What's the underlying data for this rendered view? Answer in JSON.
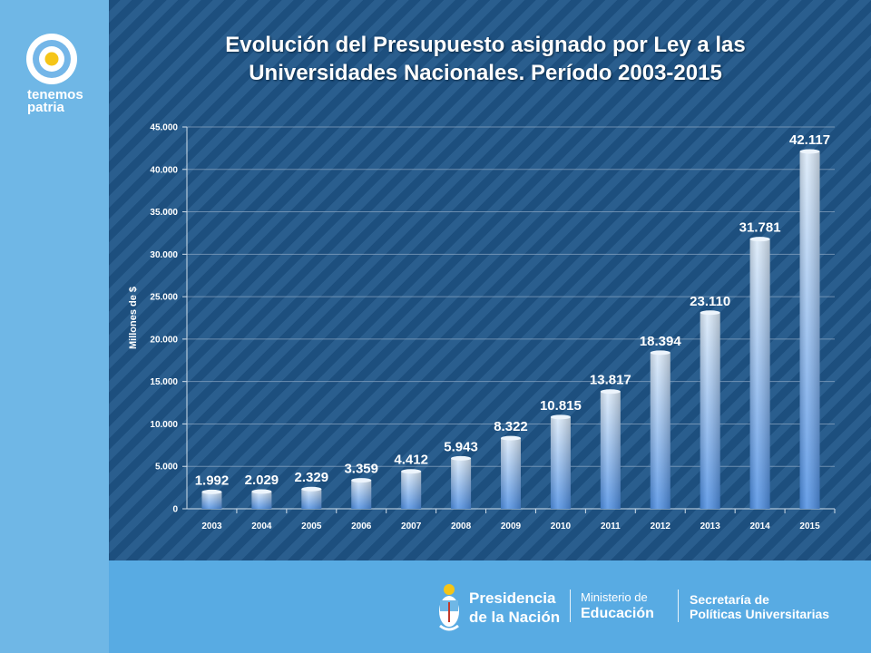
{
  "brand": {
    "line1": "tenemos",
    "line2": "patria"
  },
  "title": "Evolución del Presupuesto asignado por Ley a las Universidades Nacionales. Período 2003-2015",
  "title_lines": [
    "Evolución del Presupuesto asignado por Ley a las",
    "Universidades Nacionales. Período 2003-2015"
  ],
  "footer": {
    "presidencia_line1": "Presidencia",
    "presidencia_line2": "de la Nación",
    "ministerio_line1": "Ministerio de",
    "ministerio_line2": "Educación",
    "secretaria_line1": "Secretaría de",
    "secretaria_line2": "Políticas Universitarias"
  },
  "colors": {
    "background_stripe_dark": "#1d4f7e",
    "background_stripe_light": "#2a5e8e",
    "bar_top": "#dbeaf9",
    "bar_bottom": "#4e8fe3",
    "sidebar": "#6fb7e6",
    "footer": "#58abe3"
  },
  "chart_data": {
    "type": "bar",
    "title": "Evolución del Presupuesto asignado por Ley a las Universidades Nacionales. Período 2003-2015",
    "xlabel": "",
    "ylabel": "Millones de $",
    "categories": [
      "2003",
      "2004",
      "2005",
      "2006",
      "2007",
      "2008",
      "2009",
      "2010",
      "2011",
      "2012",
      "2013",
      "2014",
      "2015"
    ],
    "values": [
      1992,
      2029,
      2329,
      3359,
      4412,
      5943,
      8322,
      10815,
      13817,
      18394,
      23110,
      31781,
      42117
    ],
    "data_labels": [
      "1.992",
      "2.029",
      "2.329",
      "3.359",
      "4.412",
      "5.943",
      "8.322",
      "10.815",
      "13.817",
      "18.394",
      "23.110",
      "31.781",
      "42.117"
    ],
    "ylim": [
      0,
      45000
    ],
    "yticks": [
      0,
      5000,
      10000,
      15000,
      20000,
      25000,
      30000,
      35000,
      40000,
      45000
    ],
    "ytick_labels": [
      "0",
      "5.000",
      "10.000",
      "15.000",
      "20.000",
      "25.000",
      "30.000",
      "35.000",
      "40.000",
      "45.000"
    ],
    "grid": true,
    "legend": "none"
  }
}
